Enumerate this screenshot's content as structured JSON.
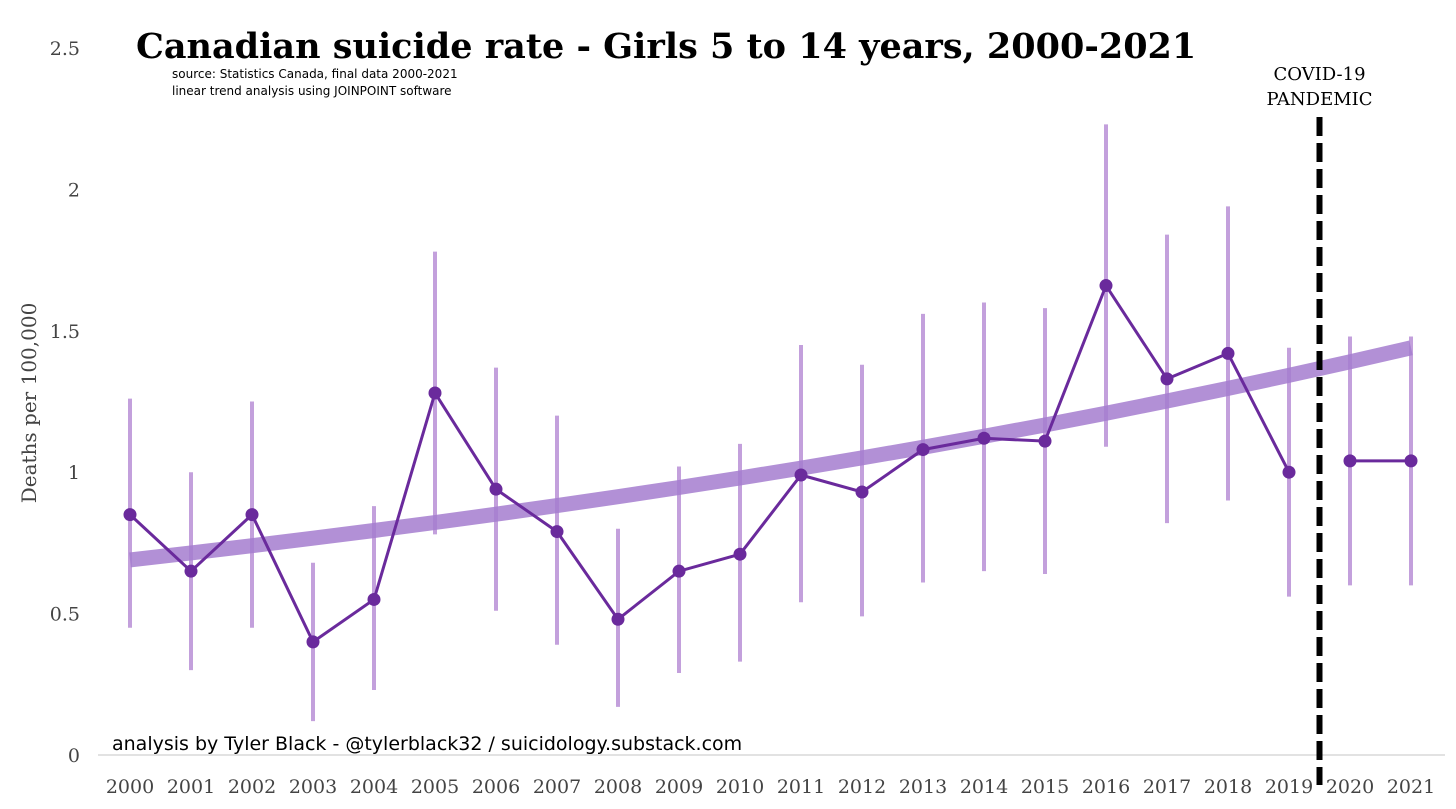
{
  "chart_data": {
    "type": "line",
    "title": "Canadian suicide rate - Girls 5 to 14 years, 2000-2021",
    "subtitle_lines": [
      "source: Statistics Canada, final data 2000-2021",
      "linear trend analysis using JOINPOINT software"
    ],
    "ylabel": "Deaths per 100,000",
    "xlabel": "",
    "ylim": [
      0,
      2.5
    ],
    "yticks": [
      "0",
      "0.5",
      "1",
      "1.5",
      "2",
      "2.5"
    ],
    "categories": [
      "2000",
      "2001",
      "2002",
      "2003",
      "2004",
      "2005",
      "2006",
      "2007",
      "2008",
      "2009",
      "2010",
      "2011",
      "2012",
      "2013",
      "2014",
      "2015",
      "2016",
      "2017",
      "2018",
      "2019",
      "2020",
      "2021"
    ],
    "series": [
      {
        "values": [
          0.85,
          0.65,
          0.85,
          0.4,
          0.55,
          1.28,
          0.94,
          0.79,
          0.48,
          0.65,
          0.71,
          0.99,
          0.93,
          1.08,
          1.12,
          1.11,
          1.66,
          1.33,
          1.42,
          1.0,
          1.04,
          1.04
        ],
        "ci_lower": [
          0.45,
          0.3,
          0.45,
          0.12,
          0.23,
          0.78,
          0.51,
          0.39,
          0.17,
          0.29,
          0.33,
          0.54,
          0.49,
          0.61,
          0.65,
          0.64,
          1.09,
          0.82,
          0.9,
          0.56,
          0.6,
          0.6
        ],
        "ci_upper": [
          1.26,
          1.0,
          1.25,
          0.68,
          0.88,
          1.78,
          1.37,
          1.2,
          0.8,
          1.02,
          1.1,
          1.45,
          1.38,
          1.56,
          1.6,
          1.58,
          2.23,
          1.84,
          1.94,
          1.44,
          1.48,
          1.48
        ],
        "color": "#6a2a9c"
      }
    ],
    "trend": {
      "start_year": "2000",
      "end_year": "2021",
      "start_value": 0.69,
      "end_value": 1.44,
      "color": "#a57ccf"
    },
    "ci_color": "#b98fd6",
    "annotation": {
      "text_lines": [
        "COVID-19",
        "PANDEMIC"
      ],
      "position": "between 2019 and 2020",
      "style": "dashed vertical line",
      "color": "#000000"
    },
    "credit": "analysis by Tyler Black - @tylerblack32 / suicidology.substack.com",
    "grid": false
  }
}
